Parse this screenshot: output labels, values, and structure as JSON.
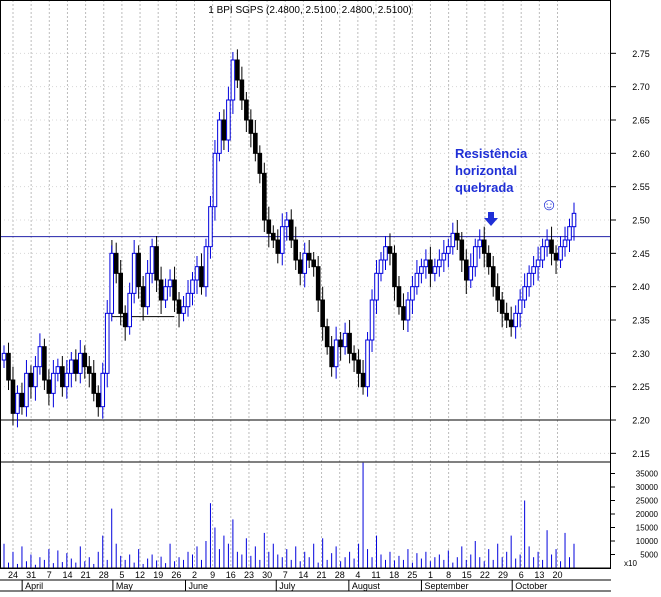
{
  "chart_data": {
    "type": "candlestick",
    "title": "1 BPI SGPS (2.4800, 2.5100, 2.4800, 2.5100)",
    "price_axis": {
      "ylim": [
        2.13,
        2.78
      ],
      "ticks": [
        "2.15",
        "2.20",
        "2.25",
        "2.30",
        "2.35",
        "2.40",
        "2.45",
        "2.50",
        "2.55",
        "2.60",
        "2.65",
        "2.70",
        "2.75"
      ]
    },
    "volume_axis": {
      "ylim": [
        0,
        40000
      ],
      "ticks": [
        "5000",
        "10000",
        "15000",
        "20000",
        "25000",
        "30000",
        "35000"
      ],
      "unit": "x10"
    },
    "day_ticks": [
      "24",
      "31",
      "7",
      "14",
      "21",
      "28",
      "5",
      "12",
      "19",
      "26",
      "2",
      "9",
      "16",
      "23",
      "30",
      "7",
      "14",
      "21",
      "28",
      "4",
      "11",
      "18",
      "25",
      "1",
      "8",
      "15",
      "22",
      "29",
      "6",
      "13",
      "20"
    ],
    "months": [
      "April",
      "May",
      "June",
      "July",
      "August",
      "September",
      "October"
    ],
    "horizontal_lines": [
      {
        "name": "resistance",
        "value": 2.475
      },
      {
        "name": "support",
        "value": 2.2
      }
    ],
    "box": {
      "from_day": "5",
      "to_day": "26",
      "bottom": 2.355
    },
    "annotation": {
      "lines": [
        "Resistência",
        "horizontal",
        "quebrada"
      ]
    },
    "smiley": "☺",
    "colors": {
      "up": "#0000dd",
      "down": "#000000",
      "line": "#2222aa",
      "grid": "#bbbbbb",
      "annotation": "#1f2fd6"
    },
    "price_path": [
      2.3,
      2.26,
      2.21,
      2.24,
      2.22,
      2.27,
      2.25,
      2.28,
      2.31,
      2.26,
      2.24,
      2.27,
      2.28,
      2.25,
      2.27,
      2.29,
      2.27,
      2.3,
      2.28,
      2.27,
      2.24,
      2.22,
      2.27,
      2.36,
      2.45,
      2.42,
      2.36,
      2.34,
      2.39,
      2.45,
      2.4,
      2.37,
      2.42,
      2.46,
      2.41,
      2.38,
      2.4,
      2.41,
      2.38,
      2.36,
      2.37,
      2.39,
      2.41,
      2.43,
      2.4,
      2.46,
      2.52,
      2.6,
      2.65,
      2.62,
      2.68,
      2.74,
      2.71,
      2.68,
      2.65,
      2.63,
      2.6,
      2.57,
      2.5,
      2.48,
      2.47,
      2.45,
      2.49,
      2.5,
      2.47,
      2.44,
      2.42,
      2.45,
      2.44,
      2.43,
      2.38,
      2.34,
      2.31,
      2.28,
      2.32,
      2.31,
      2.33,
      2.3,
      2.29,
      2.27,
      2.25,
      2.32,
      2.38,
      2.42,
      2.44,
      2.46,
      2.45,
      2.4,
      2.37,
      2.35,
      2.38,
      2.4,
      2.42,
      2.43,
      2.44,
      2.42,
      2.43,
      2.44,
      2.45,
      2.46,
      2.48,
      2.47,
      2.44,
      2.41,
      2.43,
      2.46,
      2.47,
      2.45,
      2.43,
      2.4,
      2.38,
      2.36,
      2.35,
      2.34,
      2.36,
      2.38,
      2.4,
      2.42,
      2.43,
      2.44,
      2.46,
      2.47,
      2.45,
      2.44,
      2.46,
      2.47,
      2.49,
      2.51
    ],
    "volume_path": [
      9000,
      2000,
      6000,
      1500,
      8000,
      2500,
      5000,
      1200,
      4000,
      3000,
      7000,
      1800,
      6500,
      2200,
      5500,
      3500,
      2000,
      8000,
      2500,
      4000,
      1500,
      6000,
      12000,
      3000,
      22000,
      9000,
      4500,
      3000,
      5000,
      2000,
      7000,
      1500,
      3500,
      5000,
      2800,
      4200,
      1800,
      9000,
      2500,
      4000,
      3000,
      6000,
      5000,
      8000,
      3000,
      10000,
      24000,
      15000,
      7000,
      12000,
      9000,
      18000,
      6000,
      5000,
      11000,
      4500,
      8000,
      3000,
      13000,
      6000,
      9000,
      5000,
      4000,
      7000,
      3000,
      8000,
      2500,
      6000,
      4000,
      9000,
      2000,
      11000,
      3000,
      5500,
      8000,
      2500,
      4000,
      6000,
      3500,
      9000,
      39000,
      7000,
      4000,
      12000,
      5000,
      3000,
      6000,
      2800,
      4500,
      3000,
      7000,
      2000,
      5500,
      3500,
      6000,
      2500,
      4000,
      5000,
      3000,
      6500,
      2000,
      4000,
      8000,
      3000,
      5000,
      10000,
      4000,
      2500,
      7000,
      3000,
      9000,
      4000,
      6000,
      12000,
      3500,
      5000,
      25000,
      8000,
      4000,
      6000,
      3000,
      14000,
      5000,
      7000,
      2500,
      13000,
      4000,
      9000
    ]
  }
}
